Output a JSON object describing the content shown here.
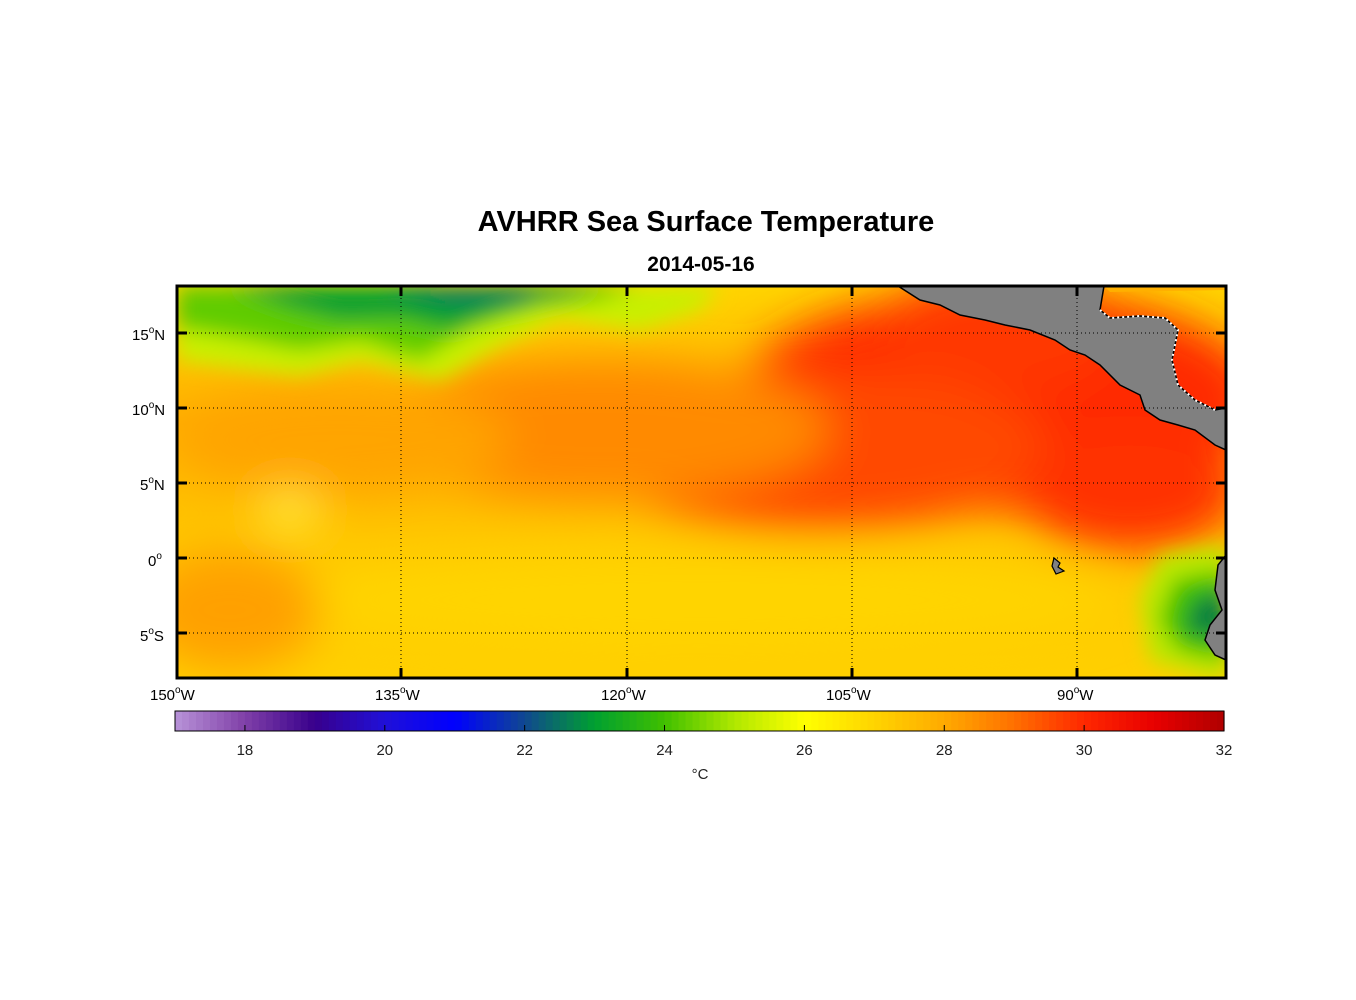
{
  "title": "AVHRR Sea Surface Temperature",
  "subtitle": "2014-05-16",
  "chart_data": {
    "type": "heatmap",
    "variable": "sea surface temperature",
    "lon_range": [
      -150,
      -80
    ],
    "lat_range": [
      -8,
      18
    ],
    "lon_ticks": [
      {
        "value": -150,
        "label": "150",
        "suffix": "W"
      },
      {
        "value": -135,
        "label": "135",
        "suffix": "W"
      },
      {
        "value": -120,
        "label": "120",
        "suffix": "W"
      },
      {
        "value": -105,
        "label": "105",
        "suffix": "W"
      },
      {
        "value": -90,
        "label": "90",
        "suffix": "W"
      }
    ],
    "lat_ticks": [
      {
        "value": 15,
        "label": "15",
        "suffix": "N"
      },
      {
        "value": 10,
        "label": "10",
        "suffix": "N"
      },
      {
        "value": 5,
        "label": "5",
        "suffix": "N"
      },
      {
        "value": 0,
        "label": "0",
        "suffix": ""
      },
      {
        "value": -5,
        "label": "5",
        "suffix": "S"
      }
    ],
    "grid": true,
    "colorbar": {
      "min": 17,
      "max": 32,
      "ticks": [
        18,
        20,
        22,
        24,
        26,
        28,
        30,
        32
      ],
      "unit": "°C",
      "colors": [
        {
          "v": 17,
          "c": "#b893d8"
        },
        {
          "v": 18,
          "c": "#8040a8"
        },
        {
          "v": 19,
          "c": "#38008c"
        },
        {
          "v": 20,
          "c": "#2010d8"
        },
        {
          "v": 21,
          "c": "#0000ff"
        },
        {
          "v": 22,
          "c": "#104890"
        },
        {
          "v": 23,
          "c": "#00a030"
        },
        {
          "v": 24,
          "c": "#40c000"
        },
        {
          "v": 25,
          "c": "#b0e800"
        },
        {
          "v": 26,
          "c": "#ffff00"
        },
        {
          "v": 27,
          "c": "#ffd400"
        },
        {
          "v": 28,
          "c": "#ffaa00"
        },
        {
          "v": 29,
          "c": "#ff7000"
        },
        {
          "v": 30,
          "c": "#ff2800"
        },
        {
          "v": 31,
          "c": "#e80000"
        },
        {
          "v": 32,
          "c": "#b00000"
        }
      ]
    },
    "sst_features": [
      {
        "region": "north-west",
        "temp_c": 23.8
      },
      {
        "region": "north-central",
        "temp_c": 23.3
      },
      {
        "region": "equatorial band",
        "temp_c": 27.2
      },
      {
        "region": "eastern warm pool",
        "temp_c": 30.2
      },
      {
        "region": "south-east coastal upwelling",
        "temp_c": 23.5
      }
    ],
    "land_color": "#808080",
    "ocean_colors": {
      "cold": "#00a030",
      "mid": "#ffd400",
      "warm": "#ff2800"
    }
  }
}
